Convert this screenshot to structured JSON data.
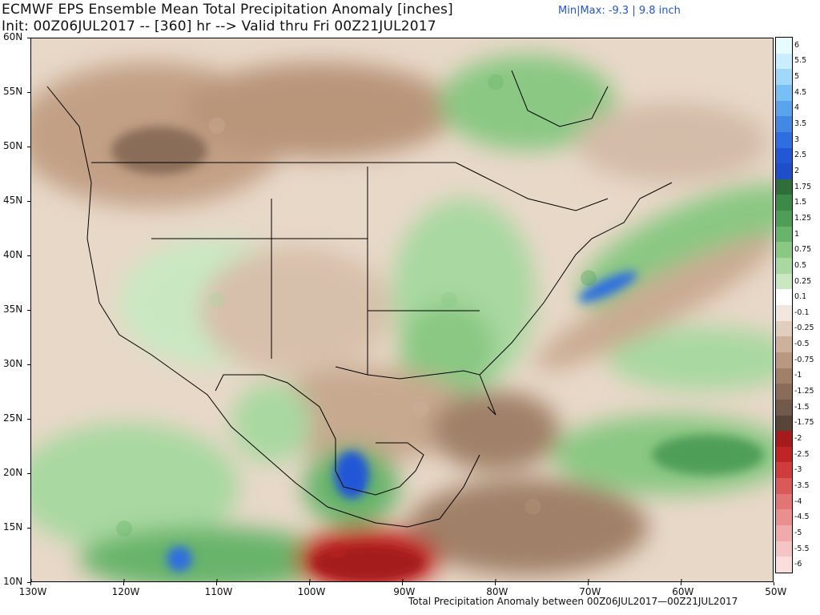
{
  "header": {
    "title_line1": "ECMWF EPS Ensemble Mean Total Precipitation Anomaly [inches]",
    "title_line2": "Init: 00Z06JUL2017 -- [360] hr --> Valid thru Fri 00Z21JUL2017",
    "minmax": "Min|Max: -9.3 | 9.8 inch"
  },
  "map": {
    "extent": {
      "lon_min": -130,
      "lon_max": -50,
      "lat_min": 10,
      "lat_max": 60
    },
    "lat_labels": [
      "60N",
      "55N",
      "50N",
      "45N",
      "40N",
      "35N",
      "30N",
      "25N",
      "20N",
      "15N",
      "10N"
    ],
    "lat_values": [
      60,
      55,
      50,
      45,
      40,
      35,
      30,
      25,
      20,
      15,
      10
    ],
    "lon_labels": [
      "130W",
      "120W",
      "110W",
      "100W",
      "90W",
      "80W",
      "70W",
      "60W",
      "50W"
    ],
    "lon_values": [
      -130,
      -120,
      -110,
      -100,
      -90,
      -80,
      -70,
      -60,
      -50
    ],
    "anomaly_regions": [
      {
        "name": "eastern-us-wet",
        "lon": -85,
        "lat": 36,
        "level": 0.75
      },
      {
        "name": "mid-atlantic-offshore-wet",
        "lon": -70,
        "lat": 38,
        "level": 1.25
      },
      {
        "name": "central-atlantic-wet",
        "lon": -60,
        "lat": 22,
        "level": 1.25
      },
      {
        "name": "gulf-of-mexico-dry",
        "lon": -88,
        "lat": 26,
        "level": -0.5
      },
      {
        "name": "caribbean-dry",
        "lon": -76,
        "lat": 17,
        "level": -0.75
      },
      {
        "name": "central-america-pacific-dry",
        "lon": -97,
        "lat": 13,
        "level": -2.5
      },
      {
        "name": "bay-of-campeche-wet",
        "lon": -95,
        "lat": 19,
        "level": 2.5
      },
      {
        "name": "southwest-monsoon-wet",
        "lon": -110,
        "lat": 36,
        "level": 0.5
      },
      {
        "name": "hudson-bay-wet",
        "lon": -80,
        "lat": 56,
        "level": 1.0
      },
      {
        "name": "canadian-prairies-dry",
        "lon": -110,
        "lat": 52,
        "level": -0.5
      },
      {
        "name": "eastern-pacific-wet",
        "lon": -120,
        "lat": 15,
        "level": 1.0
      }
    ]
  },
  "colorbar": {
    "labels": [
      "6",
      "5.5",
      "5",
      "4.5",
      "4",
      "3.5",
      "3",
      "2.5",
      "2",
      "1.75",
      "1.5",
      "1.25",
      "1",
      "0.75",
      "0.5",
      "0.25",
      "0.1",
      "-0.1",
      "-0.25",
      "-0.5",
      "-0.75",
      "-1",
      "-1.25",
      "-1.5",
      "-1.75",
      "-2",
      "-2.5",
      "-3",
      "-3.5",
      "-4",
      "-4.5",
      "-5",
      "-5.5",
      "-6"
    ],
    "colors": [
      "#e8fbff",
      "#c8eeff",
      "#9fd8fb",
      "#78bff5",
      "#5aa4ee",
      "#4488e6",
      "#2f6ee0",
      "#2257d6",
      "#1e4fc8",
      "#2f6e3a",
      "#3d8a48",
      "#4f9e58",
      "#68b46a",
      "#8ac883",
      "#a9d8a0",
      "#c9e8c1",
      "#ffffff",
      "#f1e7df",
      "#e1cfbd",
      "#ccb29a",
      "#b8987f",
      "#a08068",
      "#8a6d58",
      "#715a49",
      "#574539",
      "#a51a1a",
      "#c02525",
      "#cf3c3c",
      "#da5959",
      "#e27575",
      "#e98f8f",
      "#efaaaa",
      "#f5c4c4",
      "#fadede"
    ]
  },
  "footer": {
    "caption": "Total Precipitation Anomaly between 00Z06JUL2017—00Z21JUL2017"
  }
}
